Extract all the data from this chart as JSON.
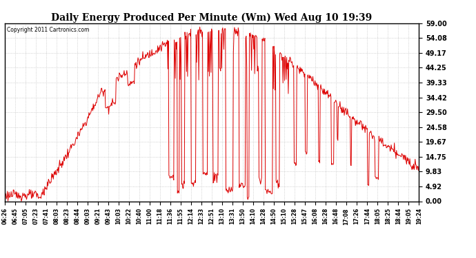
{
  "title": "Daily Energy Produced Per Minute (Wm) Wed Aug 10 19:39",
  "copyright": "Copyright 2011 Cartronics.com",
  "line_color": "#DD0000",
  "background_color": "#FFFFFF",
  "grid_color": "#BBBBBB",
  "yticks": [
    0.0,
    4.92,
    9.83,
    14.75,
    19.67,
    24.58,
    29.5,
    34.42,
    39.33,
    44.25,
    49.17,
    54.08,
    59.0
  ],
  "ylim": [
    0,
    59.0
  ],
  "xtick_labels": [
    "06:26",
    "06:45",
    "07:05",
    "07:23",
    "07:41",
    "08:03",
    "08:23",
    "08:44",
    "09:03",
    "09:21",
    "09:43",
    "10:03",
    "10:22",
    "10:40",
    "11:00",
    "11:18",
    "11:36",
    "11:55",
    "12:14",
    "12:33",
    "12:51",
    "13:10",
    "13:31",
    "13:50",
    "14:10",
    "14:28",
    "14:50",
    "15:10",
    "15:28",
    "15:47",
    "16:08",
    "16:28",
    "16:48",
    "17:08",
    "17:26",
    "17:44",
    "18:05",
    "18:25",
    "18:44",
    "19:05",
    "19:24"
  ],
  "figwidth": 6.9,
  "figheight": 3.75,
  "dpi": 100
}
